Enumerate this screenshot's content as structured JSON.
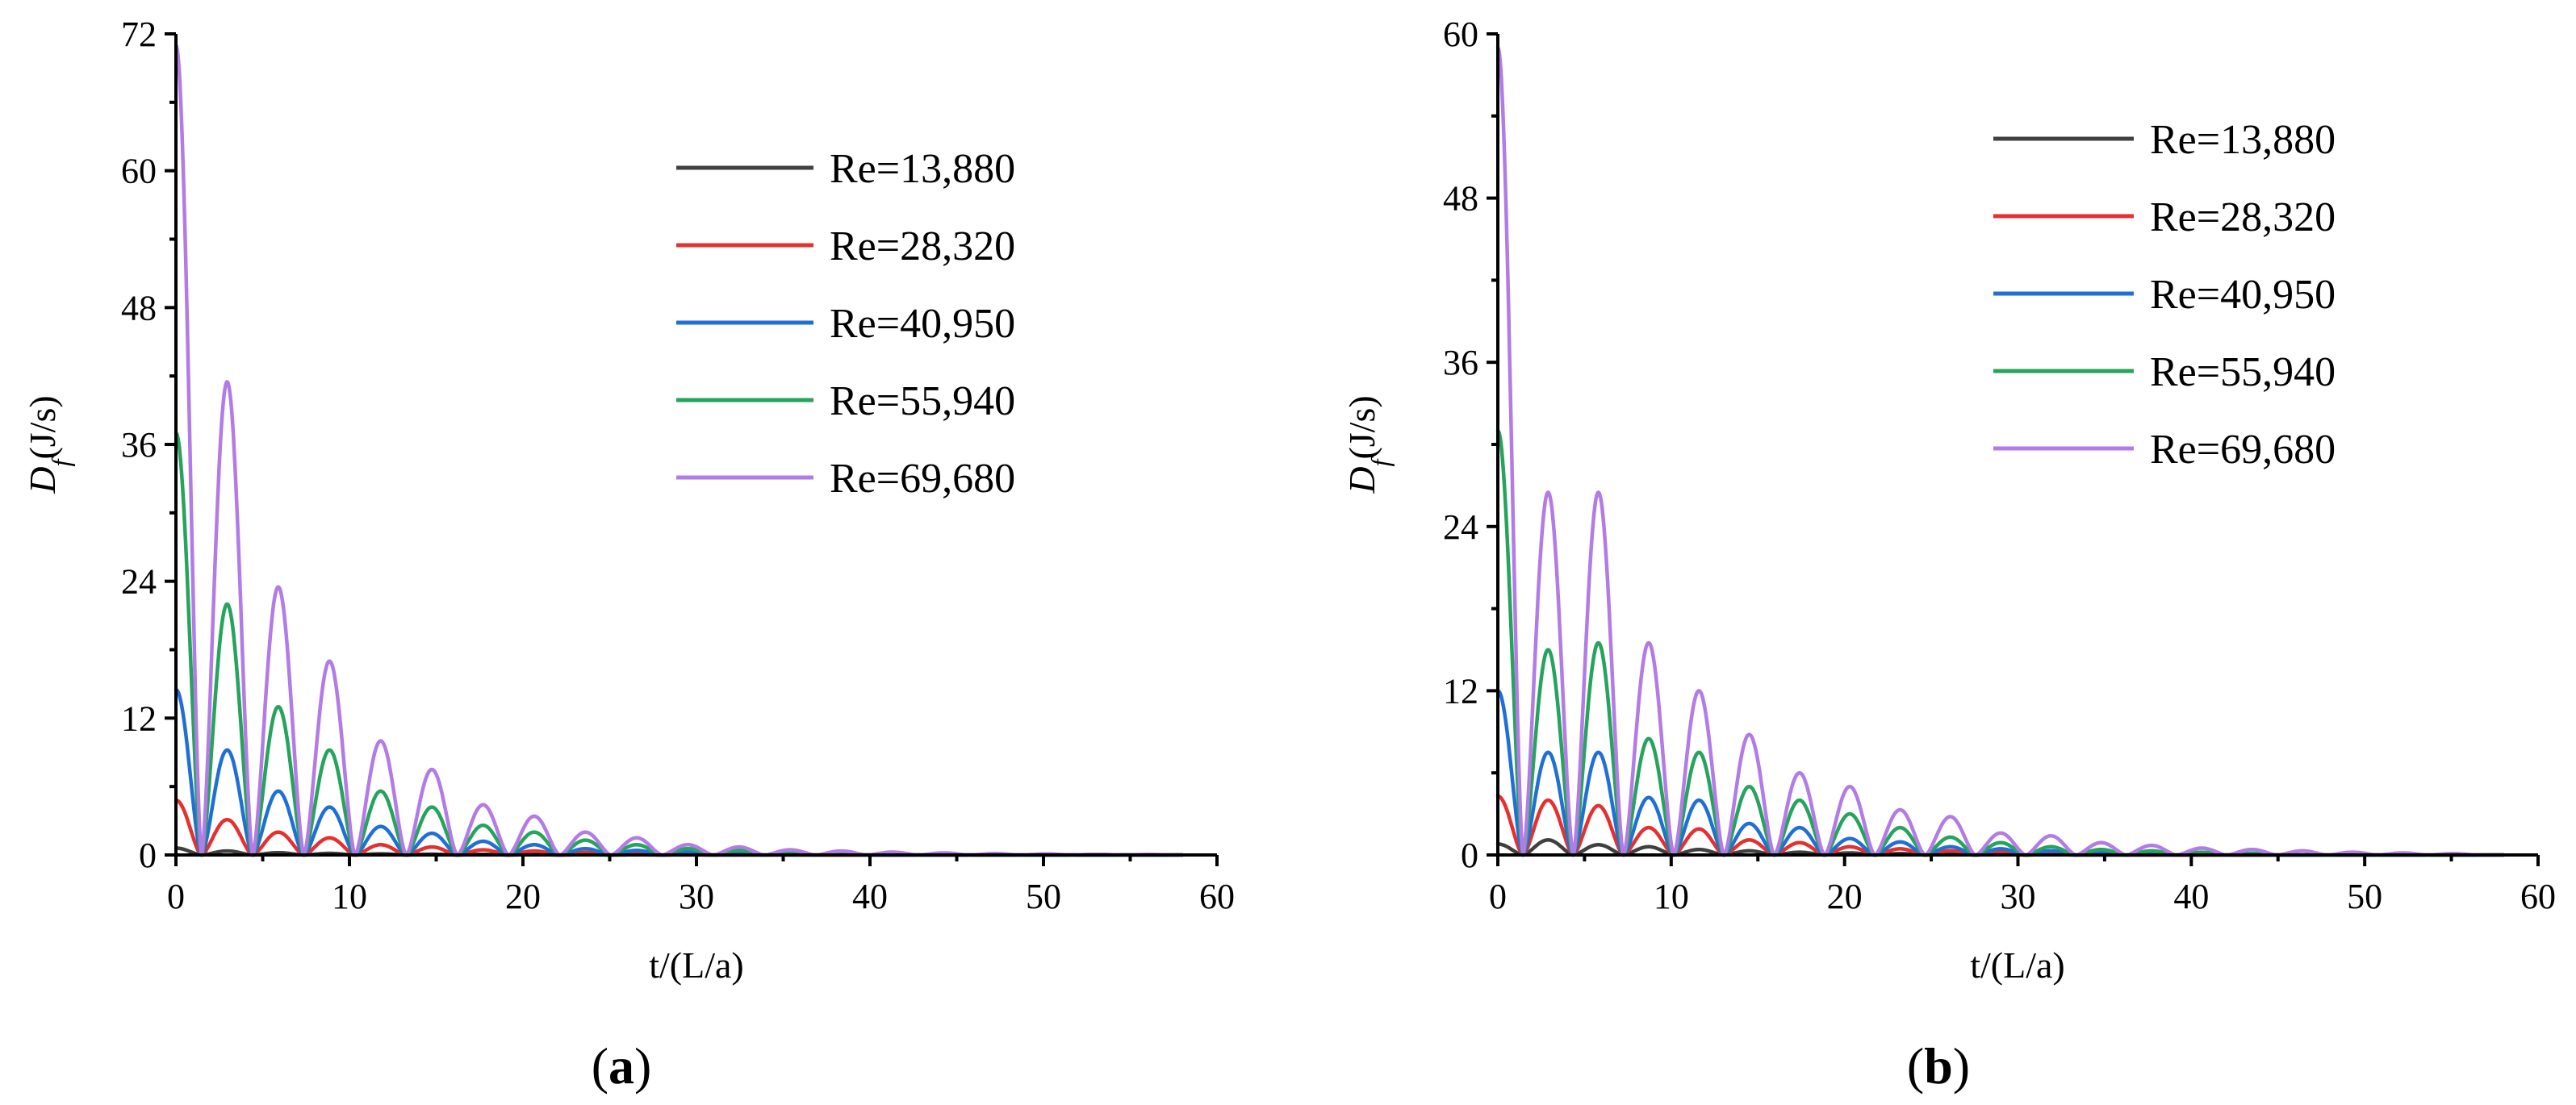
{
  "colors": {
    "Re=13,880": "#404040",
    "Re=28,320": "#e53030",
    "Re=40,950": "#1f6fd6",
    "Re=55,940": "#26a35c",
    "Re=69,680": "#b27be6"
  },
  "chart_data": [
    {
      "type": "line",
      "panel_label": "(a)",
      "panel_letter": "a",
      "xlabel": "t/(L/a)",
      "ylabel_main": "D",
      "ylabel_sub": "f",
      "ylabel_unit": "(J/s)",
      "xlim": [
        0,
        60
      ],
      "ylim": [
        0,
        72
      ],
      "xticks": [
        0,
        10,
        20,
        30,
        40,
        50,
        60
      ],
      "yticks": [
        0,
        12,
        24,
        36,
        48,
        60,
        72
      ],
      "legend_position": "top-right",
      "period": 2.95,
      "series": [
        {
          "name": "Re=13,880",
          "peaks": [
            0.6,
            0.35,
            0.2,
            0.14,
            0.1,
            0.07,
            0.05,
            0.03,
            0.02,
            0.015,
            0.01
          ]
        },
        {
          "name": "Re=28,320",
          "peaks": [
            4.8,
            3.1,
            2.0,
            1.5,
            0.9,
            0.7,
            0.45,
            0.35,
            0.22,
            0.15,
            0.1,
            0.07,
            0.05
          ]
        },
        {
          "name": "Re=40,950",
          "peaks": [
            14.5,
            9.2,
            5.6,
            4.2,
            2.5,
            1.9,
            1.2,
            0.9,
            0.55,
            0.4,
            0.25,
            0.18,
            0.12,
            0.08
          ]
        },
        {
          "name": "Re=55,940",
          "peaks": [
            37.0,
            22.0,
            13.0,
            9.2,
            5.6,
            4.2,
            2.6,
            2.0,
            1.3,
            0.9,
            0.55,
            0.4,
            0.25,
            0.18,
            0.12,
            0.08
          ]
        },
        {
          "name": "Re=69,680",
          "peaks": [
            71.0,
            41.5,
            23.5,
            17.0,
            10.0,
            7.5,
            4.4,
            3.4,
            2.0,
            1.5,
            0.9,
            0.7,
            0.45,
            0.35,
            0.25,
            0.18,
            0.12,
            0.09,
            0.06,
            0.04
          ]
        }
      ]
    },
    {
      "type": "line",
      "panel_label": "(b)",
      "panel_letter": "b",
      "xlabel": "t/(L/a)",
      "ylabel_main": "D",
      "ylabel_sub": "f",
      "ylabel_unit": "(J/s)",
      "xlim": [
        0,
        60
      ],
      "ylim": [
        0,
        60
      ],
      "xticks": [
        0,
        10,
        20,
        30,
        40,
        50,
        60
      ],
      "yticks": [
        0,
        12,
        24,
        36,
        48,
        60
      ],
      "legend_position": "top-right",
      "period": 2.9,
      "series": [
        {
          "name": "Re=13,880",
          "peaks": [
            0.8,
            1.1,
            0.75,
            0.6,
            0.4,
            0.3,
            0.2,
            0.15,
            0.1,
            0.07,
            0.05,
            0.03
          ]
        },
        {
          "name": "Re=28,320",
          "peaks": [
            4.3,
            4.0,
            3.6,
            2.0,
            1.9,
            1.1,
            0.9,
            0.6,
            0.45,
            0.3,
            0.2,
            0.15,
            0.1,
            0.07
          ]
        },
        {
          "name": "Re=40,950",
          "peaks": [
            12.0,
            7.5,
            7.5,
            4.2,
            4.0,
            2.3,
            2.0,
            1.2,
            0.95,
            0.6,
            0.45,
            0.3,
            0.2,
            0.14,
            0.09
          ]
        },
        {
          "name": "Re=55,940",
          "peaks": [
            31.0,
            15.0,
            15.5,
            8.5,
            7.5,
            5.0,
            4.0,
            3.0,
            2.0,
            1.3,
            0.9,
            0.6,
            0.4,
            0.3,
            0.2,
            0.12
          ]
        },
        {
          "name": "Re=69,680",
          "peaks": [
            59.0,
            26.5,
            26.5,
            15.5,
            12.0,
            8.8,
            6.0,
            5.0,
            3.3,
            2.8,
            1.6,
            1.4,
            0.9,
            0.7,
            0.5,
            0.4,
            0.3,
            0.2,
            0.15,
            0.1
          ]
        }
      ]
    }
  ]
}
